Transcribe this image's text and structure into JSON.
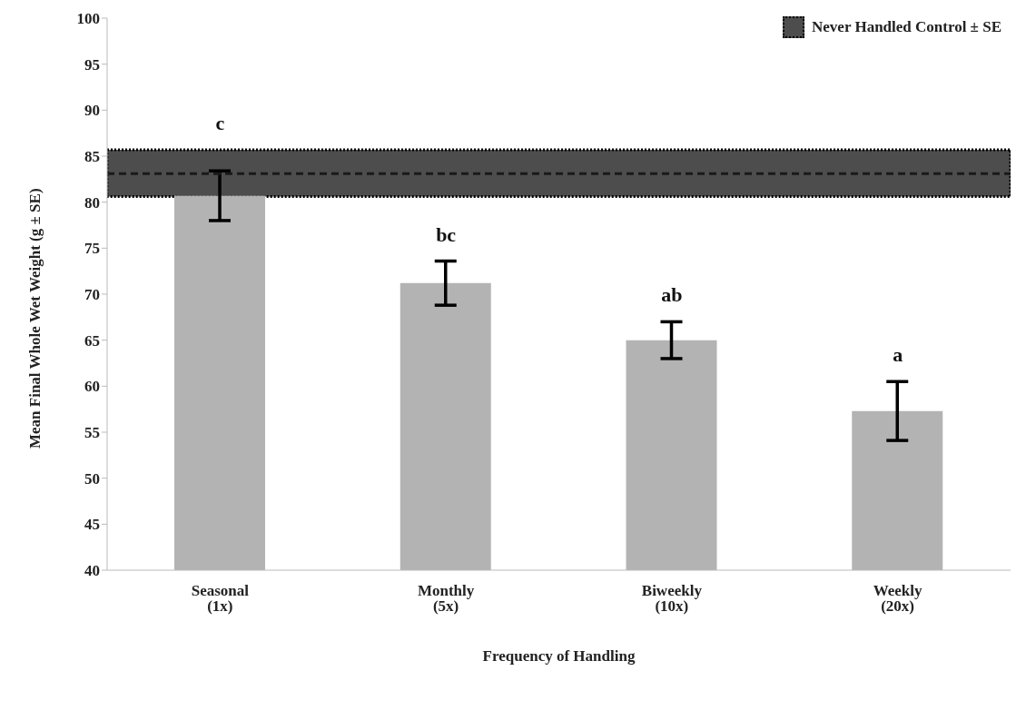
{
  "chart_data": {
    "type": "bar",
    "xlabel": "Frequency of Handling",
    "ylabel": "Mean Final Whole Wet Weight (g ± SE)",
    "categories": [
      "Seasonal (1x)",
      "Monthly (5x)",
      "Biweekly (10x)",
      "Weekly (20x)"
    ],
    "values": [
      80.7,
      71.2,
      65.0,
      57.3
    ],
    "errors": [
      2.7,
      2.4,
      2.0,
      3.2
    ],
    "color": "#b3b3b3",
    "ylim": [
      40,
      100
    ],
    "yticks": [
      40,
      45,
      50,
      55,
      60,
      65,
      70,
      75,
      80,
      85,
      90,
      95,
      100
    ],
    "grid": false,
    "bands": [
      {
        "axis": "y",
        "from": 80.6,
        "to": 85.7,
        "label": "Never Handled Control ± SE",
        "color": "#4d4d4d"
      }
    ],
    "ref_lines": [
      {
        "axis": "y",
        "value": 83.1,
        "line_style": "dashed",
        "color": "#1a1a1a"
      }
    ],
    "legend": "top right",
    "annotations": [
      "c",
      "bc",
      "ab",
      "a"
    ]
  }
}
